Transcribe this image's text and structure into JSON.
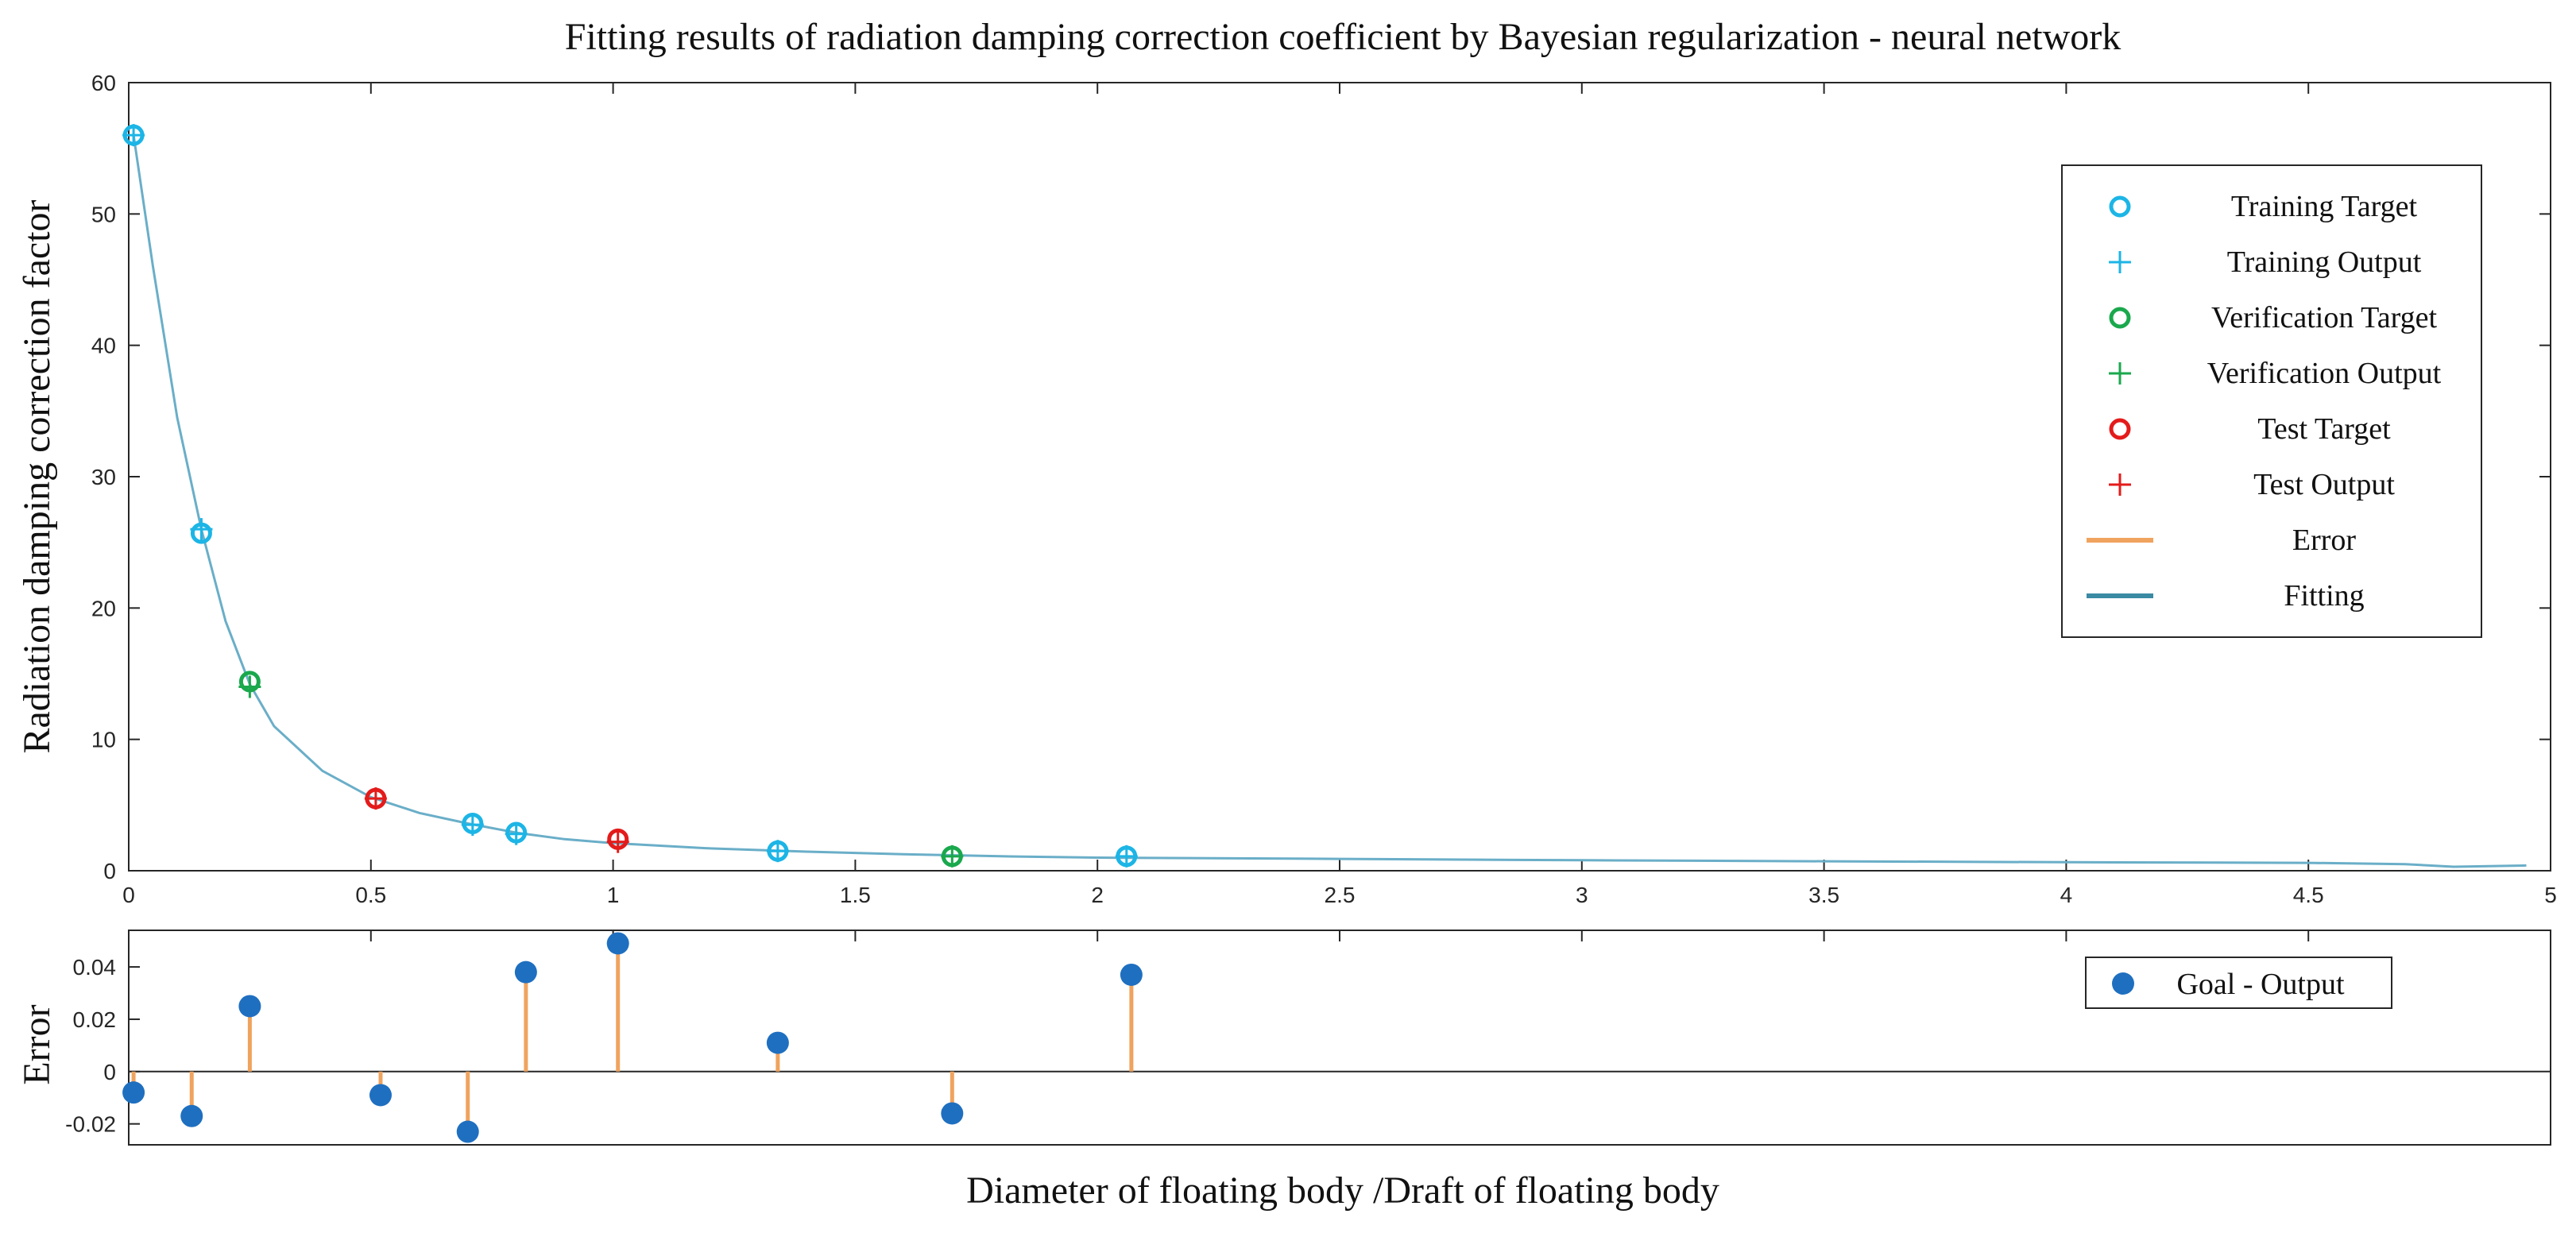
{
  "chart_data": [
    {
      "type": "scatter",
      "title": "Fitting results of radiation damping correction coefficient by Bayesian regularization - neural network",
      "ylabel": "Radiation damping correction factor",
      "xlim": [
        0,
        5
      ],
      "ylim": [
        0,
        60
      ],
      "xticks": [
        "0",
        "0.5",
        "1",
        "1.5",
        "2",
        "2.5",
        "3",
        "3.5",
        "4",
        "4.5",
        "5"
      ],
      "yticks": [
        "0",
        "10",
        "20",
        "30",
        "40",
        "50",
        "60"
      ],
      "legend_position": "top-right",
      "legend": {
        "training_target": "Training Target",
        "training_output": "Training Output",
        "verification_target": "Verification Target",
        "verification_output": "Verification Output",
        "test_target": "Test Target",
        "test_output": "Test Output",
        "error": "Error",
        "fitting": "Fitting"
      },
      "series": [
        {
          "name": "Training Target",
          "marker": "circle",
          "color": "#1cb5e6",
          "x": [
            0.01,
            0.15,
            0.71,
            0.8,
            1.34,
            2.06
          ],
          "y": [
            56.0,
            25.7,
            3.6,
            2.9,
            1.5,
            1.1
          ]
        },
        {
          "name": "Training Output",
          "marker": "plus",
          "color": "#1cb5e6",
          "x": [
            0.01,
            0.15,
            0.71,
            0.8,
            1.34,
            2.06
          ],
          "y": [
            56.0,
            26.0,
            3.5,
            2.8,
            1.5,
            1.1
          ]
        },
        {
          "name": "Verification Target",
          "marker": "circle",
          "color": "#1aa84d",
          "x": [
            0.25,
            1.7
          ],
          "y": [
            14.4,
            1.1
          ]
        },
        {
          "name": "Verification Output",
          "marker": "plus",
          "color": "#1aa84d",
          "x": [
            0.25,
            1.7
          ],
          "y": [
            14.0,
            1.1
          ]
        },
        {
          "name": "Test Target",
          "marker": "circle",
          "color": "#e41b1b",
          "x": [
            0.51,
            1.01
          ],
          "y": [
            5.5,
            2.4
          ]
        },
        {
          "name": "Test Output",
          "marker": "plus",
          "color": "#e41b1b",
          "x": [
            0.51,
            1.01
          ],
          "y": [
            5.5,
            2.2
          ]
        },
        {
          "name": "Fitting",
          "marker": "line",
          "color": "#6aaec8",
          "x": [
            0.01,
            0.05,
            0.1,
            0.15,
            0.2,
            0.25,
            0.3,
            0.4,
            0.5,
            0.6,
            0.7,
            0.8,
            0.9,
            1.0,
            1.2,
            1.4,
            1.6,
            1.8,
            2.0,
            2.5,
            3.0,
            3.5,
            4.0,
            4.5,
            4.7,
            4.8,
            4.95
          ],
          "y": [
            56.0,
            46.0,
            34.5,
            26.0,
            19.0,
            14.2,
            11.0,
            7.6,
            5.6,
            4.4,
            3.6,
            2.9,
            2.4,
            2.1,
            1.7,
            1.45,
            1.25,
            1.1,
            1.0,
            0.9,
            0.8,
            0.72,
            0.65,
            0.6,
            0.5,
            0.3,
            0.4
          ]
        }
      ]
    },
    {
      "type": "stem",
      "ylabel": "Error",
      "xlabel": "Diameter of floating body /Draft of floating body",
      "xlim": [
        0,
        5
      ],
      "ylim": [
        -0.028,
        0.054
      ],
      "yticks": [
        "0.04",
        "0.02",
        "0",
        "-0.02"
      ],
      "legend_position": "top-right",
      "legend": {
        "goal_output": "Goal - Output"
      },
      "series": [
        {
          "name": "Goal - Output",
          "color": "#1f6fc0",
          "stem_color": "#f0a35e",
          "x": [
            0.01,
            0.13,
            0.25,
            0.52,
            0.7,
            0.82,
            1.01,
            1.34,
            1.7,
            2.07
          ],
          "y": [
            -0.008,
            -0.017,
            0.025,
            -0.009,
            -0.023,
            0.038,
            0.049,
            0.011,
            -0.016,
            0.037
          ]
        }
      ]
    }
  ]
}
